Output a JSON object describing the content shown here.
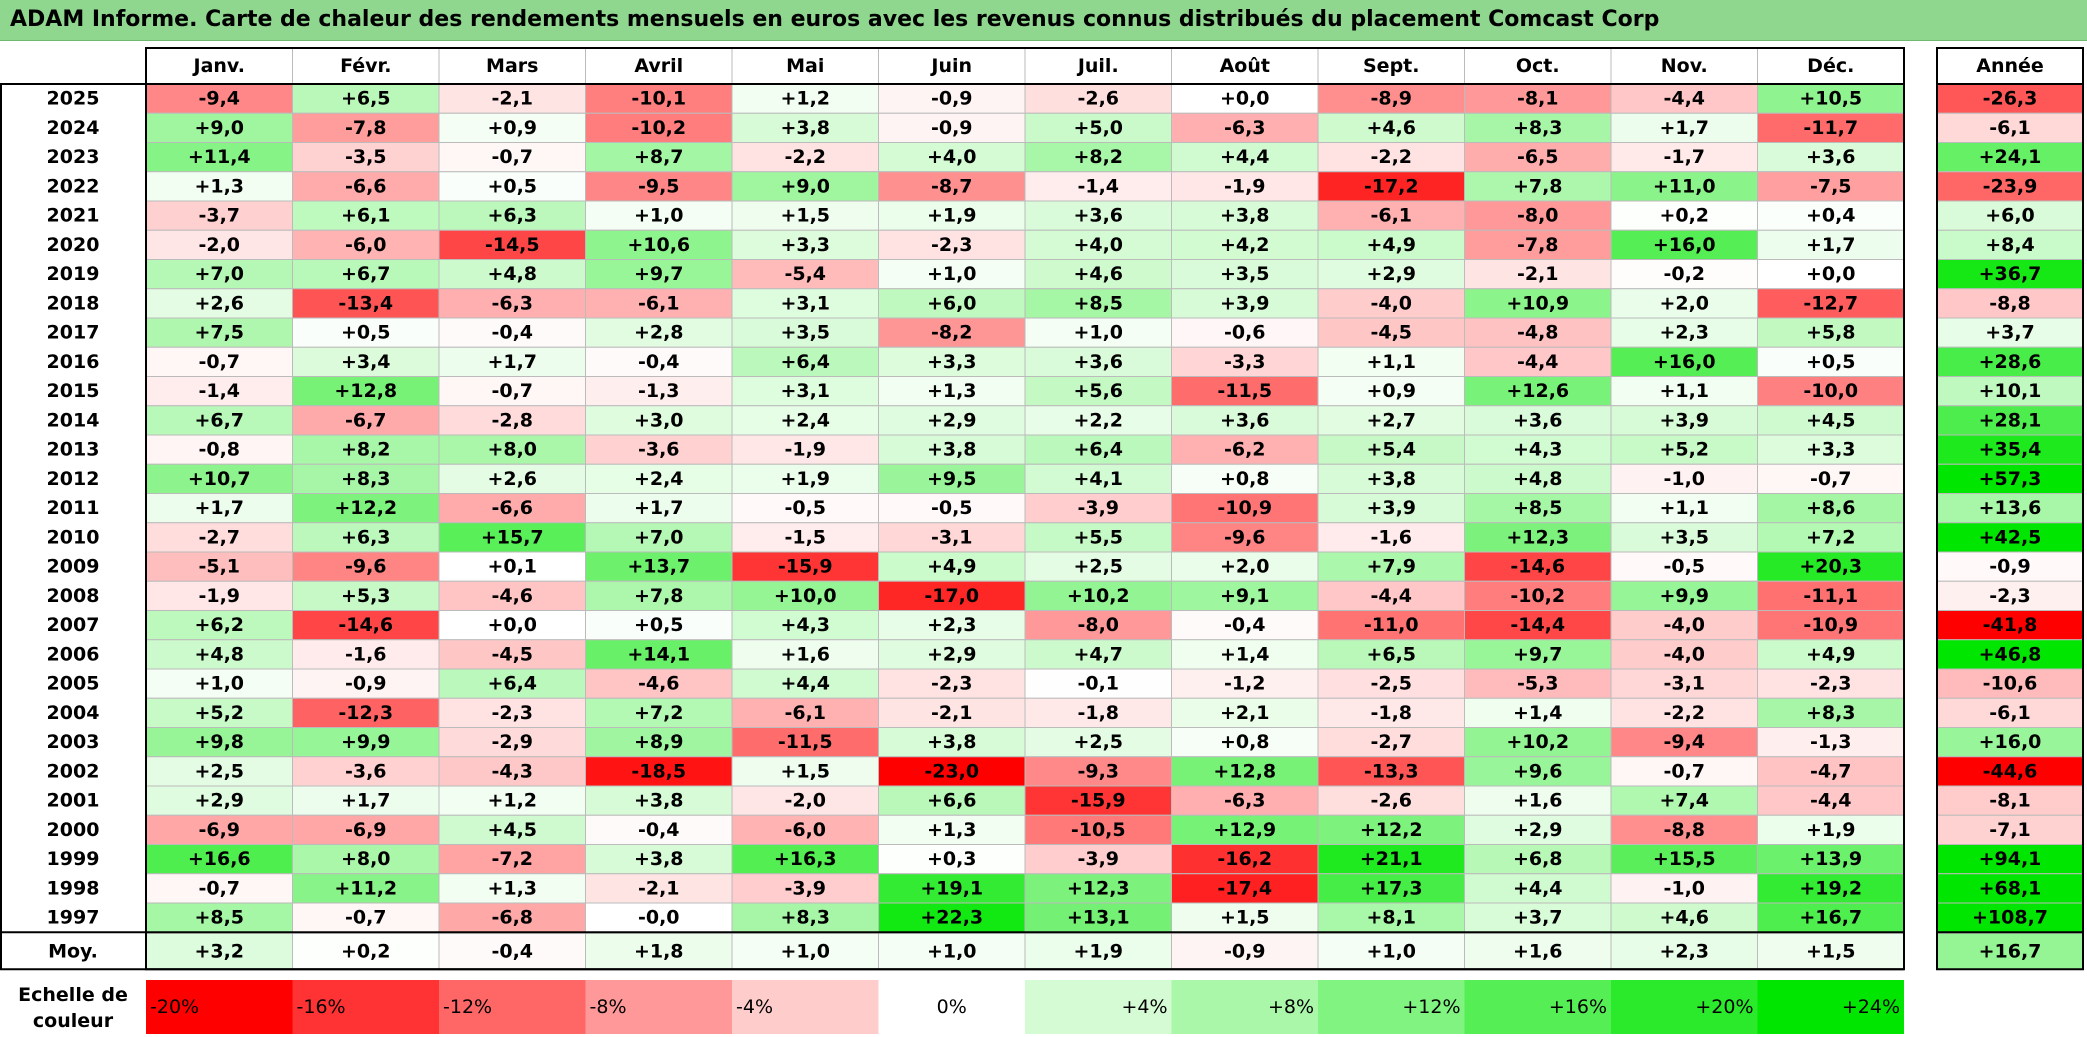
{
  "title": "ADAM Informe. Carte de chaleur des rendements mensuels en euros avec les revenus connus distribués du placement Comcast Corp",
  "colors": {
    "title_bg": "#8fd68f",
    "negative_max": "#ff0000",
    "neutral": "#ffffff",
    "positive_max": "#00e600",
    "border": "#000000",
    "grid": "#bbbbbb"
  },
  "chart_data": {
    "type": "heatmap",
    "months": [
      "Janv.",
      "Févr.",
      "Mars",
      "Avril",
      "Mai",
      "Juin",
      "Juil.",
      "Août",
      "Sept.",
      "Oct.",
      "Nov.",
      "Déc."
    ],
    "year_header": "Année",
    "years": [
      "2025",
      "2024",
      "2023",
      "2022",
      "2021",
      "2020",
      "2019",
      "2018",
      "2017",
      "2016",
      "2015",
      "2014",
      "2013",
      "2012",
      "2011",
      "2010",
      "2009",
      "2008",
      "2007",
      "2006",
      "2005",
      "2004",
      "2003",
      "2002",
      "2001",
      "2000",
      "1999",
      "1998",
      "1997"
    ],
    "values": [
      [
        "-9,4",
        "+6,5",
        "-2,1",
        "-10,1",
        "+1,2",
        "-0,9",
        "-2,6",
        "+0,0",
        "-8,9",
        "-8,1",
        "-4,4",
        "+10,5"
      ],
      [
        "+9,0",
        "-7,8",
        "+0,9",
        "-10,2",
        "+3,8",
        "-0,9",
        "+5,0",
        "-6,3",
        "+4,6",
        "+8,3",
        "+1,7",
        "-11,7"
      ],
      [
        "+11,4",
        "-3,5",
        "-0,7",
        "+8,7",
        "-2,2",
        "+4,0",
        "+8,2",
        "+4,4",
        "-2,2",
        "-6,5",
        "-1,7",
        "+3,6"
      ],
      [
        "+1,3",
        "-6,6",
        "+0,5",
        "-9,5",
        "+9,0",
        "-8,7",
        "-1,4",
        "-1,9",
        "-17,2",
        "+7,8",
        "+11,0",
        "-7,5"
      ],
      [
        "-3,7",
        "+6,1",
        "+6,3",
        "+1,0",
        "+1,5",
        "+1,9",
        "+3,6",
        "+3,8",
        "-6,1",
        "-8,0",
        "+0,2",
        "+0,4"
      ],
      [
        "-2,0",
        "-6,0",
        "-14,5",
        "+10,6",
        "+3,3",
        "-2,3",
        "+4,0",
        "+4,2",
        "+4,9",
        "-7,8",
        "+16,0",
        "+1,7"
      ],
      [
        "+7,0",
        "+6,7",
        "+4,8",
        "+9,7",
        "-5,4",
        "+1,0",
        "+4,6",
        "+3,5",
        "+2,9",
        "-2,1",
        "-0,2",
        "+0,0"
      ],
      [
        "+2,6",
        "-13,4",
        "-6,3",
        "-6,1",
        "+3,1",
        "+6,0",
        "+8,5",
        "+3,9",
        "-4,0",
        "+10,9",
        "+2,0",
        "-12,7"
      ],
      [
        "+7,5",
        "+0,5",
        "-0,4",
        "+2,8",
        "+3,5",
        "-8,2",
        "+1,0",
        "-0,6",
        "-4,5",
        "-4,8",
        "+2,3",
        "+5,8"
      ],
      [
        "-0,7",
        "+3,4",
        "+1,7",
        "-0,4",
        "+6,4",
        "+3,3",
        "+3,6",
        "-3,3",
        "+1,1",
        "-4,4",
        "+16,0",
        "+0,5"
      ],
      [
        "-1,4",
        "+12,8",
        "-0,7",
        "-1,3",
        "+3,1",
        "+1,3",
        "+5,6",
        "-11,5",
        "+0,9",
        "+12,6",
        "+1,1",
        "-10,0"
      ],
      [
        "+6,7",
        "-6,7",
        "-2,8",
        "+3,0",
        "+2,4",
        "+2,9",
        "+2,2",
        "+3,6",
        "+2,7",
        "+3,6",
        "+3,9",
        "+4,5"
      ],
      [
        "-0,8",
        "+8,2",
        "+8,0",
        "-3,6",
        "-1,9",
        "+3,8",
        "+6,4",
        "-6,2",
        "+5,4",
        "+4,3",
        "+5,2",
        "+3,3"
      ],
      [
        "+10,7",
        "+8,3",
        "+2,6",
        "+2,4",
        "+1,9",
        "+9,5",
        "+4,1",
        "+0,8",
        "+3,8",
        "+4,8",
        "-1,0",
        "-0,7"
      ],
      [
        "+1,7",
        "+12,2",
        "-6,6",
        "+1,7",
        "-0,5",
        "-0,5",
        "-3,9",
        "-10,9",
        "+3,9",
        "+8,5",
        "+1,1",
        "+8,6"
      ],
      [
        "-2,7",
        "+6,3",
        "+15,7",
        "+7,0",
        "-1,5",
        "-3,1",
        "+5,5",
        "-9,6",
        "-1,6",
        "+12,3",
        "+3,5",
        "+7,2"
      ],
      [
        "-5,1",
        "-9,6",
        "+0,1",
        "+13,7",
        "-15,9",
        "+4,9",
        "+2,5",
        "+2,0",
        "+7,9",
        "-14,6",
        "-0,5",
        "+20,3"
      ],
      [
        "-1,9",
        "+5,3",
        "-4,6",
        "+7,8",
        "+10,0",
        "-17,0",
        "+10,2",
        "+9,1",
        "-4,4",
        "-10,2",
        "+9,9",
        "-11,1"
      ],
      [
        "+6,2",
        "-14,6",
        "+0,0",
        "+0,5",
        "+4,3",
        "+2,3",
        "-8,0",
        "-0,4",
        "-11,0",
        "-14,4",
        "-4,0",
        "-10,9"
      ],
      [
        "+4,8",
        "-1,6",
        "-4,5",
        "+14,1",
        "+1,6",
        "+2,9",
        "+4,7",
        "+1,4",
        "+6,5",
        "+9,7",
        "-4,0",
        "+4,9"
      ],
      [
        "+1,0",
        "-0,9",
        "+6,4",
        "-4,6",
        "+4,4",
        "-2,3",
        "-0,1",
        "-1,2",
        "-2,5",
        "-5,3",
        "-3,1",
        "-2,3"
      ],
      [
        "+5,2",
        "-12,3",
        "-2,3",
        "+7,2",
        "-6,1",
        "-2,1",
        "-1,8",
        "+2,1",
        "-1,8",
        "+1,4",
        "-2,2",
        "+8,3"
      ],
      [
        "+9,8",
        "+9,9",
        "-2,9",
        "+8,9",
        "-11,5",
        "+3,8",
        "+2,5",
        "+0,8",
        "-2,7",
        "+10,2",
        "-9,4",
        "-1,3"
      ],
      [
        "+2,5",
        "-3,6",
        "-4,3",
        "-18,5",
        "+1,5",
        "-23,0",
        "-9,3",
        "+12,8",
        "-13,3",
        "+9,6",
        "-0,7",
        "-4,7"
      ],
      [
        "+2,9",
        "+1,7",
        "+1,2",
        "+3,8",
        "-2,0",
        "+6,6",
        "-15,9",
        "-6,3",
        "-2,6",
        "+1,6",
        "+7,4",
        "-4,4"
      ],
      [
        "-6,9",
        "-6,9",
        "+4,5",
        "-0,4",
        "-6,0",
        "+1,3",
        "-10,5",
        "+12,9",
        "+12,2",
        "+2,9",
        "-8,8",
        "+1,9"
      ],
      [
        "+16,6",
        "+8,0",
        "-7,2",
        "+3,8",
        "+16,3",
        "+0,3",
        "-3,9",
        "-16,2",
        "+21,1",
        "+6,8",
        "+15,5",
        "+13,9"
      ],
      [
        "-0,7",
        "+11,2",
        "+1,3",
        "-2,1",
        "-3,9",
        "+19,1",
        "+12,3",
        "-17,4",
        "+17,3",
        "+4,4",
        "-1,0",
        "+19,2"
      ],
      [
        "+8,5",
        "-0,7",
        "-6,8",
        "-0,0",
        "+8,3",
        "+22,3",
        "+13,1",
        "+1,5",
        "+8,1",
        "+3,7",
        "+4,6",
        "+16,7"
      ]
    ],
    "annual": [
      "-26,3",
      "-6,1",
      "+24,1",
      "-23,9",
      "+6,0",
      "+8,4",
      "+36,7",
      "-8,8",
      "+3,7",
      "+28,6",
      "+10,1",
      "+28,1",
      "+35,4",
      "+57,3",
      "+13,6",
      "+42,5",
      "-0,9",
      "-2,3",
      "-41,8",
      "+46,8",
      "-10,6",
      "-6,1",
      "+16,0",
      "-44,6",
      "-8,1",
      "-7,1",
      "+94,1",
      "+68,1",
      "+108,7"
    ],
    "average_label": "Moy.",
    "average": [
      "+3,2",
      "+0,2",
      "-0,4",
      "+1,8",
      "+1,0",
      "+1,0",
      "+1,9",
      "-0,9",
      "+1,0",
      "+1,6",
      "+2,3",
      "+1,5"
    ],
    "average_annual": "+16,7",
    "scale_label": [
      "Echelle de",
      "couleur"
    ],
    "scale": [
      "-20%",
      "-16%",
      "-12%",
      "-8%",
      "-4%",
      "0%",
      "+4%",
      "+8%",
      "+12%",
      "+16%",
      "+20%",
      "+24%"
    ],
    "scale_values": [
      -20,
      -16,
      -12,
      -8,
      -4,
      0,
      4,
      8,
      12,
      16,
      20,
      24
    ],
    "color_range": [
      -20,
      24
    ]
  }
}
